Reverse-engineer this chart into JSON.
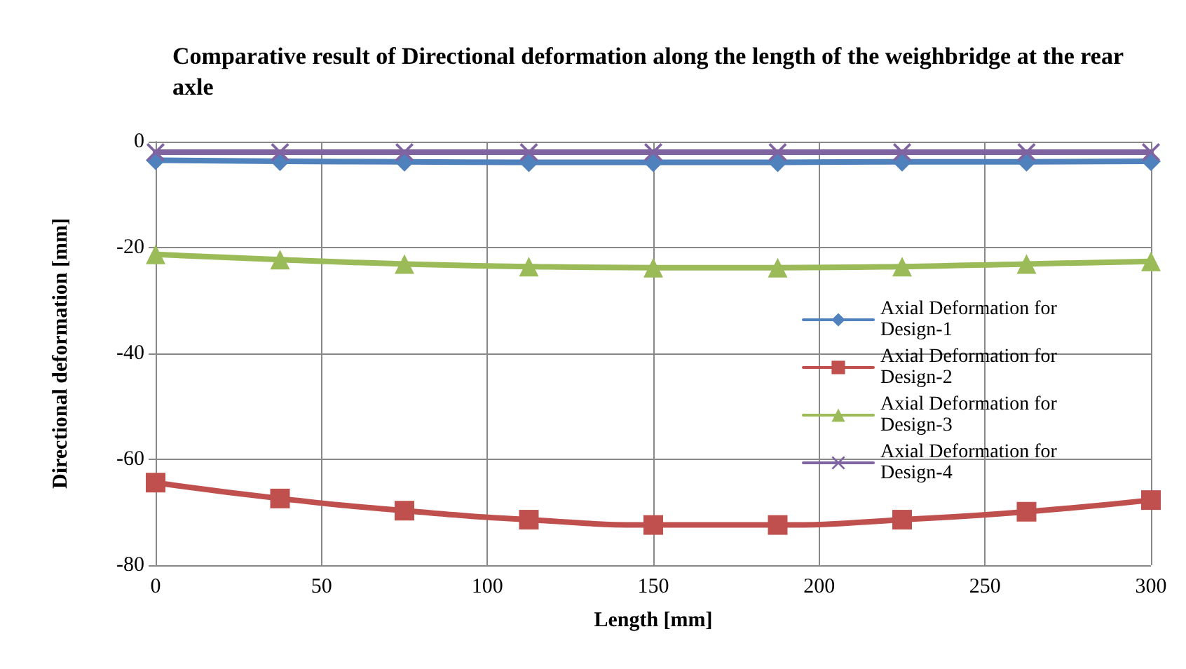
{
  "chart_data": {
    "type": "line",
    "title": "Comparative result of Directional deformation along the length of the weighbridge at the rear axle",
    "xlabel": "Length [mm]",
    "ylabel": "Directional deformation [mm]",
    "x": [
      0,
      37.5,
      75,
      112.5,
      150,
      187.5,
      225,
      262.5,
      300
    ],
    "series": [
      {
        "name": "Axial Deformation for Design-1",
        "color": "#4f81bd",
        "marker": "diamond",
        "values": [
          -3.5,
          -3.7,
          -3.8,
          -3.9,
          -3.9,
          -3.9,
          -3.8,
          -3.8,
          -3.7
        ]
      },
      {
        "name": "Axial Deformation for Design-2",
        "color": "#c0504d",
        "marker": "square",
        "values": [
          -64.4,
          -67.4,
          -69.7,
          -71.4,
          -72.4,
          -72.4,
          -71.4,
          -69.9,
          -67.7
        ]
      },
      {
        "name": "Axial Deformation for Design-3",
        "color": "#9bbb59",
        "marker": "triangle",
        "values": [
          -21.3,
          -22.3,
          -23.1,
          -23.6,
          -23.8,
          -23.8,
          -23.6,
          -23.1,
          -22.6
        ]
      },
      {
        "name": "Axial Deformation for Design-4",
        "color": "#8064a2",
        "marker": "cross",
        "values": [
          -2,
          -2,
          -2,
          -2,
          -2,
          -2,
          -2,
          -2,
          -2
        ]
      }
    ],
    "xlim": [
      0,
      300
    ],
    "xticks": [
      0,
      50,
      100,
      150,
      200,
      250,
      300
    ],
    "ylim": [
      -80,
      0
    ],
    "yticks": [
      -80,
      -60,
      -40,
      -20,
      0
    ],
    "grid": true,
    "legend": "right"
  }
}
